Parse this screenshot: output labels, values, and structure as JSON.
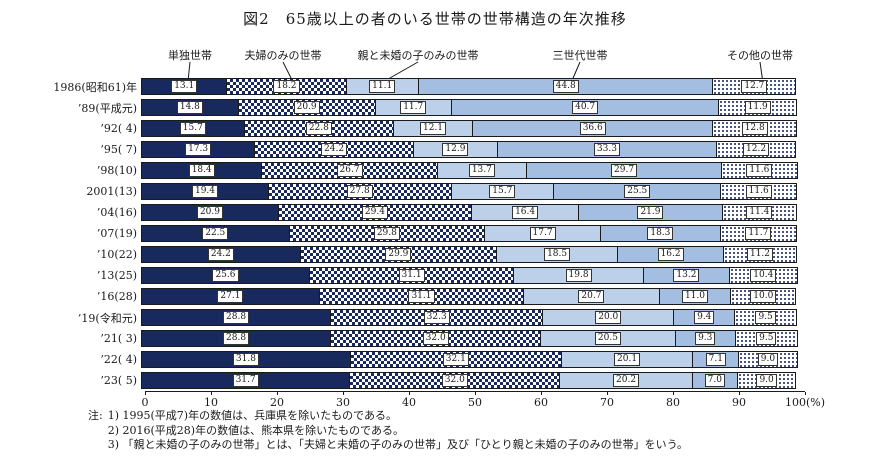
{
  "title": "図2　65歳以上の者のいる世帯の世帯構造の年次推移",
  "chart_data": {
    "type": "bar",
    "subtype": "horizontal-stacked-percent",
    "unit": "%",
    "xlim": [
      0,
      100
    ],
    "categories": [
      "1986(昭和61)年",
      "’89(平成元)",
      "’92( 4)",
      "’95( 7)",
      "’98(10)",
      "2001(13)",
      "’04(16)",
      "’07(19)",
      "’10(22)",
      "’13(25)",
      "’16(28)",
      "’19(令和元)",
      "’21( 3)",
      "’22( 4)",
      "’23( 5)"
    ],
    "series": [
      {
        "key": "single",
        "name": "単独世帯",
        "style": "solid-navy",
        "values": [
          13.1,
          14.8,
          15.7,
          17.3,
          18.4,
          19.4,
          20.9,
          22.5,
          24.2,
          25.6,
          27.1,
          28.8,
          28.8,
          31.8,
          31.7
        ]
      },
      {
        "key": "couple-only",
        "name": "夫婦のみの世帯",
        "style": "checker",
        "values": [
          18.2,
          20.9,
          22.8,
          24.2,
          26.7,
          27.8,
          29.4,
          29.8,
          29.9,
          31.1,
          31.1,
          32.3,
          32.0,
          32.1,
          32.0
        ]
      },
      {
        "key": "parent-unmarried-child",
        "name": "親と未婚の子のみの世帯",
        "style": "solid-lightblue",
        "values": [
          11.1,
          11.7,
          12.1,
          12.9,
          13.7,
          15.7,
          16.4,
          17.7,
          18.5,
          19.8,
          20.7,
          20.0,
          20.5,
          20.1,
          20.2
        ]
      },
      {
        "key": "three-generation",
        "name": "三世代世帯",
        "style": "solid-blue",
        "values": [
          44.8,
          40.7,
          36.6,
          33.3,
          29.7,
          25.5,
          21.9,
          18.3,
          16.2,
          13.2,
          11.0,
          9.4,
          9.3,
          7.1,
          7.0
        ]
      },
      {
        "key": "other",
        "name": "その他の世帯",
        "style": "dotted",
        "values": [
          12.7,
          11.9,
          12.8,
          12.2,
          11.6,
          11.6,
          11.4,
          11.7,
          11.2,
          10.4,
          10.0,
          9.5,
          9.5,
          9.0,
          9.0
        ]
      }
    ],
    "x_ticks": [
      {
        "v": 0,
        "label": "0"
      },
      {
        "v": 10,
        "label": "10"
      },
      {
        "v": 20,
        "label": "20"
      },
      {
        "v": 30,
        "label": "30"
      },
      {
        "v": 40,
        "label": "40"
      },
      {
        "v": 50,
        "label": "50"
      },
      {
        "v": 60,
        "label": "60"
      },
      {
        "v": 70,
        "label": "70"
      },
      {
        "v": 80,
        "label": "80"
      },
      {
        "v": 90,
        "label": "90"
      },
      {
        "v": 100,
        "label": "100(%)"
      }
    ],
    "legend_position": "top",
    "legend_label_x": [
      190,
      283,
      418,
      580,
      760
    ],
    "grid": false
  },
  "notes": {
    "prefix": "注:",
    "lines": [
      "1) 1995(平成7)年の数値は、兵庫県を除いたものである。",
      "2) 2016(平成28)年の数値は、熊本県を除いたものである。",
      "3) 「親と未婚の子のみの世帯」とは、「夫婦と未婚の子のみの世帯」及び「ひとり親と未婚の子のみの世帯」をいう。"
    ]
  },
  "colors": {
    "navy": "#18295e",
    "light_blue": "#bdd0e9",
    "mid_blue": "#a4bee2",
    "border": "#1a1a1a",
    "background": "#ffffff"
  }
}
